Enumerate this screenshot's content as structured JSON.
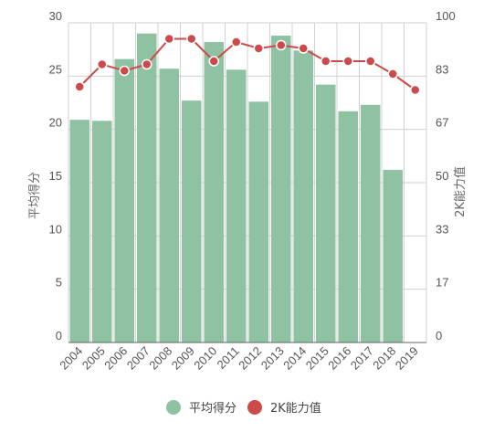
{
  "chart_data": {
    "type": "bar+line",
    "categories": [
      "2004",
      "2005",
      "2006",
      "2007",
      "2008",
      "2009",
      "2010",
      "2011",
      "2012",
      "2013",
      "2014",
      "2015",
      "2016",
      "2017",
      "2018",
      "2019"
    ],
    "series": [
      {
        "name": "平均得分",
        "type": "bar",
        "axis": "left",
        "color": "#8fc1a3",
        "values": [
          20.9,
          20.8,
          26.6,
          29.0,
          25.7,
          22.7,
          28.2,
          25.6,
          22.6,
          28.8,
          27.4,
          24.2,
          21.7,
          22.3,
          16.2,
          null
        ]
      },
      {
        "name": "2K能力值",
        "type": "line",
        "axis": "right",
        "color": "#cc4a4a",
        "values": [
          80,
          87,
          85,
          87,
          95,
          95,
          88,
          94,
          92,
          93,
          92,
          88,
          88,
          88,
          84,
          79
        ]
      }
    ],
    "y_left": {
      "label": "平均得分",
      "range": [
        0,
        30
      ],
      "ticks": [
        "0",
        "5",
        "10",
        "15",
        "20",
        "25",
        "30"
      ]
    },
    "y_right": {
      "label": "2K能力值",
      "range": [
        0,
        100
      ],
      "ticks": [
        "0",
        "17",
        "33",
        "50",
        "67",
        "83",
        "100"
      ]
    },
    "grid": true,
    "legend": {
      "position": "bottom-center"
    }
  }
}
